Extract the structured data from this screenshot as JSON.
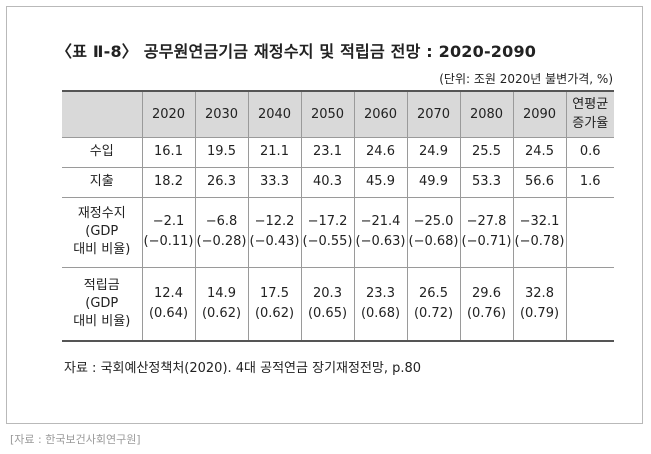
{
  "title": "〈표 Ⅱ-8〉 공무원연금기금 재정수지 및 적립금 전망 : 2020-2090",
  "unit": "(단위: 조원 2020년 불변가격, %)",
  "table": {
    "headers": [
      "",
      "2020",
      "2030",
      "2040",
      "2050",
      "2060",
      "2070",
      "2080",
      "2090",
      "연평균\n증가율"
    ],
    "rows": [
      {
        "label": "수입",
        "values": [
          "16.1",
          "19.5",
          "21.1",
          "23.1",
          "24.6",
          "24.9",
          "25.5",
          "24.5",
          "0.6"
        ]
      },
      {
        "label": "지출",
        "values": [
          "18.2",
          "26.3",
          "33.3",
          "40.3",
          "45.9",
          "49.9",
          "53.3",
          "56.6",
          "1.6"
        ]
      },
      {
        "label": "재정수지\n(GDP\n대비 비율)",
        "values": [
          "−2.1\n(−0.11)",
          "−6.8\n(−0.28)",
          "−12.2\n(−0.43)",
          "−17.2\n(−0.55)",
          "−21.4\n(−0.63)",
          "−25.0\n(−0.68)",
          "−27.8\n(−0.71)",
          "−32.1\n(−0.78)",
          ""
        ]
      },
      {
        "label": "적립금\n(GDP\n대비 비율)",
        "values": [
          "12.4\n(0.64)",
          "14.9\n(0.62)",
          "17.5\n(0.62)",
          "20.3\n(0.65)",
          "23.3\n(0.68)",
          "26.5\n(0.72)",
          "29.6\n(0.76)",
          "32.8\n(0.79)",
          ""
        ]
      }
    ]
  },
  "source": "자료 : 국회예산정책처(2020). 4대 공적연금 장기재정전망, p.80",
  "credit": "[자료 : 한국보건사회연구원]"
}
